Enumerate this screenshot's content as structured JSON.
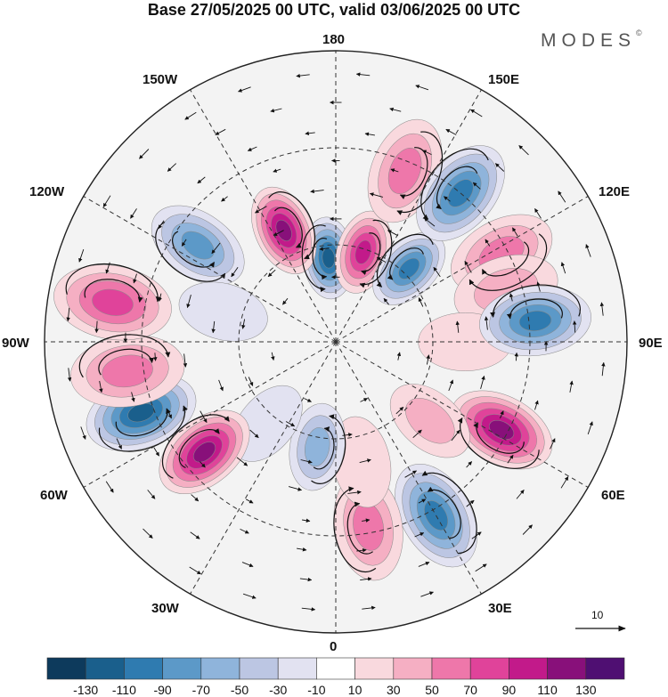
{
  "title": "Base 27/05/2025 00 UTC, valid 03/06/2025 00 UTC",
  "logo": {
    "text": "MODES",
    "mark": "©"
  },
  "lon_labels": {
    "north": "180",
    "south": "0",
    "west": "90W",
    "east": "90E",
    "nw_upper": "150W",
    "nw_lower": "120W",
    "ne_upper": "150E",
    "ne_lower": "120E",
    "sw_upper": "60W",
    "sw_lower": "30W",
    "se_upper": "60E",
    "se_lower": "30E"
  },
  "reference_vector": {
    "value": "10"
  },
  "colorbar": {
    "colors": [
      "#0d3a5c",
      "#1a5f8c",
      "#2f7bb0",
      "#5c99c8",
      "#8fb4db",
      "#bcc6e3",
      "#e2e2f1",
      "#ffffff",
      "#f9d9de",
      "#f5afc3",
      "#ee77aa",
      "#e0439a",
      "#c21a8a",
      "#88107a",
      "#4f0f72"
    ],
    "labels": [
      "-130",
      "-110",
      "-90",
      "-70",
      "-50",
      "-30",
      "-10",
      "10",
      "30",
      "50",
      "70",
      "90",
      "110",
      "130"
    ]
  },
  "anomaly_cells": [
    {
      "lon": -175,
      "colat": 26,
      "value": -125
    },
    {
      "lon": 163,
      "colat": 29,
      "value": 95
    },
    {
      "lon": 135,
      "colat": 32,
      "value": -90
    },
    {
      "lon": 158,
      "colat": 57,
      "value": 55
    },
    {
      "lon": 140,
      "colat": 60,
      "value": -95
    },
    {
      "lon": 118,
      "colat": 58,
      "value": 55
    },
    {
      "lon": 107,
      "colat": 55,
      "value": 30
    },
    {
      "lon": 90,
      "colat": 40,
      "value": 20
    },
    {
      "lon": 96,
      "colat": 62,
      "value": -100
    },
    {
      "lon": 62,
      "colat": 58,
      "value": 115
    },
    {
      "lon": 50,
      "colat": 38,
      "value": 35
    },
    {
      "lon": 30,
      "colat": 62,
      "value": -95
    },
    {
      "lon": 10,
      "colat": 58,
      "value": 50
    },
    {
      "lon": 12,
      "colat": 38,
      "value": 20
    },
    {
      "lon": -10,
      "colat": 33,
      "value": -60
    },
    {
      "lon": -40,
      "colat": 33,
      "value": -20
    },
    {
      "lon": -50,
      "colat": 53,
      "value": 110
    },
    {
      "lon": -70,
      "colat": 64,
      "value": -110
    },
    {
      "lon": -82,
      "colat": 65,
      "value": 60
    },
    {
      "lon": -100,
      "colat": 70,
      "value": 85
    },
    {
      "lon": -125,
      "colat": 52,
      "value": -70
    },
    {
      "lon": -155,
      "colat": 38,
      "value": 125
    },
    {
      "lon": -105,
      "colat": 36,
      "value": -15
    }
  ]
}
